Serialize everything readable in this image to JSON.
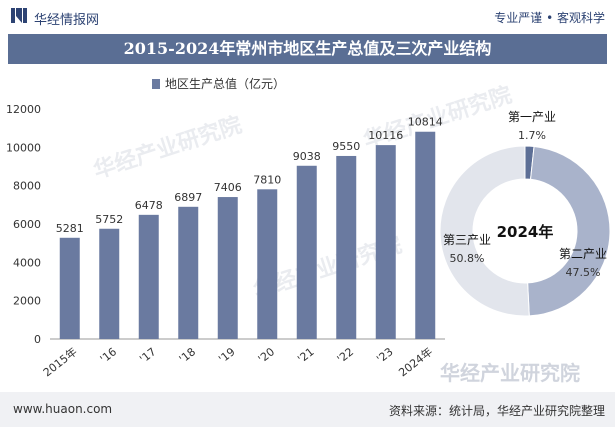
{
  "header": {
    "brand": "华经情报网",
    "slogan": "专业严谨 • 客观科学"
  },
  "title": "2015-2024年常州市地区生产总值及三次产业结构",
  "watermark": "华经产业研究院",
  "footer": {
    "site": "www.huaon.com",
    "source": "资料来源：统计局，华经产业研究院整理"
  },
  "colors": {
    "bar": "#6a7aa0",
    "title_bg": "#5a6e94",
    "primary": "#5d6f96",
    "secondary": "#a9b3cb",
    "tertiary": "#e2e5ec"
  },
  "chart_data": [
    {
      "type": "bar",
      "series": [
        {
          "name": "地区生产总值（亿元）",
          "values": [
            5281,
            5752,
            6478,
            6897,
            7406,
            7810,
            9038,
            9550,
            10116,
            10814
          ]
        }
      ],
      "categories": [
        "2015年",
        "'16",
        "'17",
        "'18",
        "'19",
        "'20",
        "'21",
        "'22",
        "'23",
        "2024年"
      ],
      "ylim": [
        0,
        12000
      ],
      "yticks": [
        0,
        2000,
        4000,
        6000,
        8000,
        10000,
        12000
      ],
      "grid": false,
      "legend": "top"
    },
    {
      "type": "pie",
      "donut": true,
      "center_label": "2024年",
      "slices": [
        {
          "label": "第一产业",
          "value": 1.7,
          "value_label": "1.7%"
        },
        {
          "label": "第二产业",
          "value": 47.5,
          "value_label": "47.5%"
        },
        {
          "label": "第三产业",
          "value": 50.8,
          "value_label": "50.8%"
        }
      ]
    }
  ]
}
